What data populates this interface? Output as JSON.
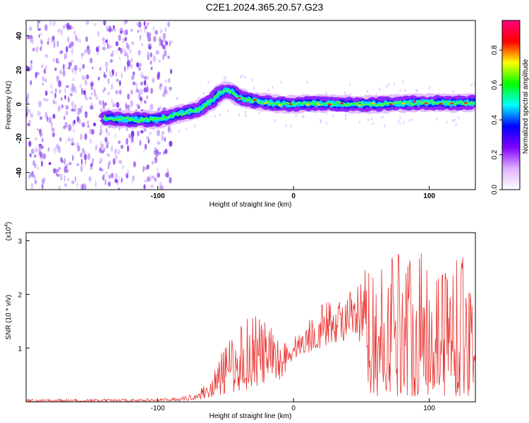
{
  "title": "C2E1.2024.365.20.57.G23",
  "chart_data": [
    {
      "type": "heatmap",
      "xlabel": "Height of straight line (km)",
      "ylabel": "Frequency (Hz)",
      "xlim": [
        -197,
        134
      ],
      "ylim": [
        -50,
        49
      ],
      "xticks": [
        -100,
        0,
        100
      ],
      "yticks": [
        -40,
        -20,
        0,
        20,
        40
      ],
      "grid": false,
      "colorbar": {
        "label": "Normalized spectral amplitude",
        "range": [
          0,
          0.97
        ],
        "ticks": [
          0.0,
          0.2,
          0.4,
          0.6,
          0.8
        ],
        "tick_labels": [
          "0.0",
          "0.2",
          "0.4",
          "0.6",
          "0.8"
        ],
        "colormap": [
          "#ffffff",
          "#e0b0ff",
          "#8000ff",
          "#0000ff",
          "#00ffff",
          "#00ff00",
          "#ffff00",
          "#ff0000",
          "#ff0080"
        ]
      },
      "ridge": {
        "x": [
          -140,
          -120,
          -100,
          -90,
          -80,
          -70,
          -60,
          -55,
          -50,
          -45,
          -40,
          -30,
          -20,
          -10,
          0,
          20,
          40,
          60,
          80,
          100,
          120,
          134
        ],
        "frequency": [
          -8,
          -9,
          -9,
          -7,
          -5,
          -3,
          2,
          6,
          8,
          7,
          4,
          2,
          1,
          0,
          0,
          0.5,
          0,
          0,
          0.5,
          1,
          0.5,
          1
        ]
      }
    },
    {
      "type": "line",
      "xlabel": "Height of straight line (km)",
      "ylabel": "SNR (10 * v/v)",
      "scale_label": "(x10",
      "scale_exponent": "4",
      "scale_suffix": ")",
      "xlim": [
        -197,
        134
      ],
      "ylim": [
        0,
        3.15
      ],
      "xticks": [
        -100,
        0,
        100
      ],
      "yticks": [
        1,
        2,
        3
      ],
      "grid": false,
      "series": [
        {
          "color": "#e8322e",
          "envelope": {
            "x": [
              -197,
              -150,
              -100,
              -80,
              -70,
              -60,
              -50,
              -40,
              -30,
              -20,
              -10,
              0,
              10,
              20,
              30,
              40,
              50,
              55,
              60,
              70,
              80,
              90,
              100,
              110,
              120,
              134
            ],
            "low": [
              0.0,
              0.0,
              0.01,
              0.02,
              0.05,
              0.08,
              0.15,
              0.2,
              0.25,
              0.3,
              0.4,
              0.8,
              0.9,
              1.0,
              1.1,
              1.15,
              1.0,
              0.2,
              0.1,
              0.1,
              0.1,
              0.1,
              0.1,
              0.1,
              0.1,
              0.1
            ],
            "high": [
              0.05,
              0.05,
              0.06,
              0.1,
              0.2,
              0.5,
              1.1,
              1.4,
              1.85,
              1.5,
              1.2,
              1.2,
              1.5,
              1.85,
              1.9,
              2.0,
              2.25,
              2.7,
              2.2,
              2.85,
              3.15,
              2.7,
              2.9,
              2.75,
              2.9,
              2.3
            ]
          }
        }
      ]
    }
  ]
}
